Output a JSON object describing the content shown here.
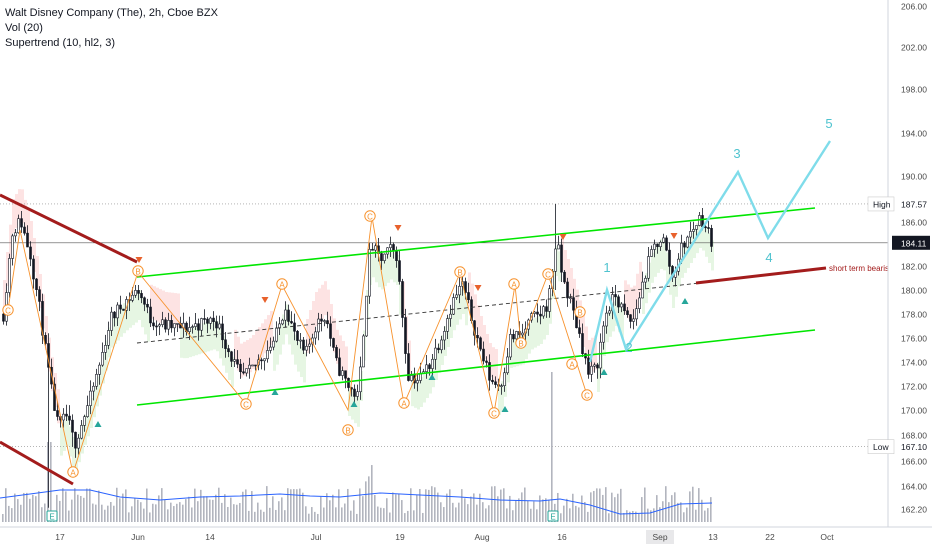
{
  "legend": {
    "title": "Walt Disney Company (The), 2h, Cboe BZX",
    "volume": "Vol (20)",
    "supertrend": "Supertrend (10, hl2, 3)"
  },
  "chart_data": {
    "type": "candlestick",
    "y_ticks": [
      206,
      202,
      198,
      194,
      190,
      186,
      182,
      180,
      178,
      176,
      174,
      172,
      170,
      168,
      166,
      164,
      162.2
    ],
    "x_ticks": [
      "17",
      "Jun",
      "14",
      "Jul",
      "19",
      "Aug",
      "16",
      "Sep",
      "13",
      "22",
      "Oct"
    ],
    "highlight_x": "Sep",
    "price_labels": [
      {
        "label": "High",
        "value": "187.57"
      },
      {
        "label": "",
        "value": "184.11"
      },
      {
        "label": "Low",
        "value": "167.10"
      }
    ],
    "annotation_text": "short term bearish l",
    "wave_labels": [
      "1",
      "2",
      "3",
      "4",
      "5"
    ],
    "abc_labels": [
      "A",
      "B",
      "C"
    ],
    "event_label": "E",
    "colors": {
      "up": "#131722",
      "down": "#131722",
      "channel": "#00e600",
      "trend_down": "#a31c1c",
      "projection": "#7fdcea",
      "wave_text": "#4fc3cf",
      "abc": "#f7922d",
      "volume": "#b2b5be",
      "volume_ma": "#2962ff",
      "last_price_bg": "#131722"
    }
  }
}
